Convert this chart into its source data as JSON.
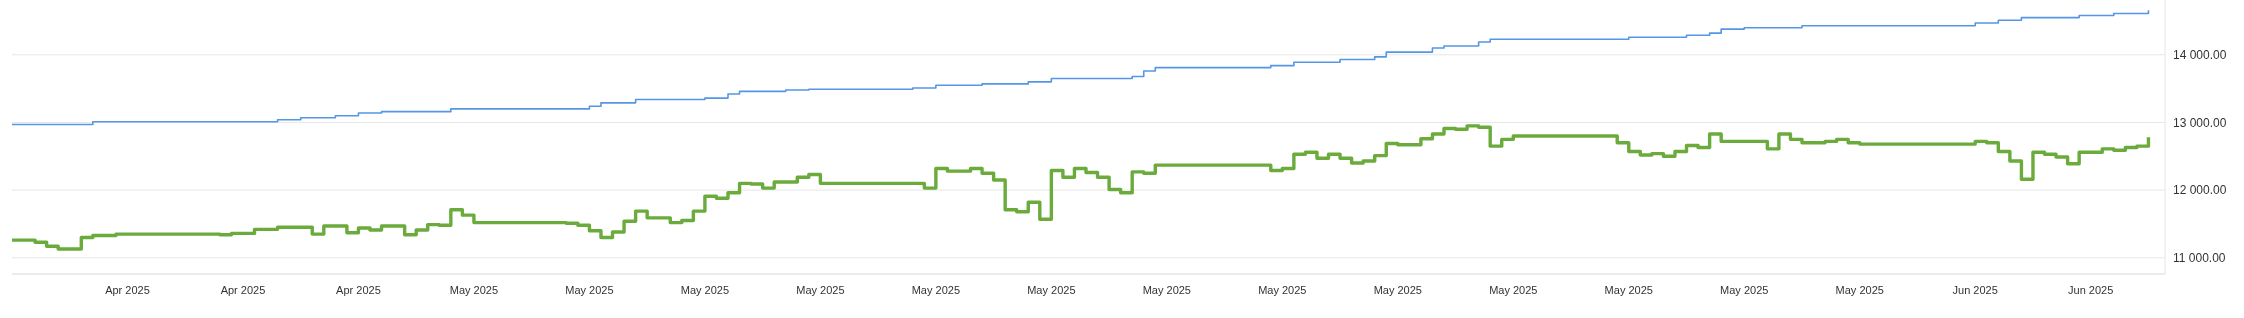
{
  "chart_data": {
    "type": "step",
    "categories": [
      null,
      null,
      null,
      null,
      null,
      null,
      null,
      null,
      null,
      null,
      "Apr 2025",
      null,
      null,
      null,
      null,
      null,
      null,
      null,
      null,
      null,
      "Apr 2025",
      null,
      null,
      null,
      null,
      null,
      null,
      null,
      null,
      null,
      "Apr 2025",
      null,
      null,
      null,
      null,
      null,
      null,
      null,
      null,
      null,
      "May 2025",
      null,
      null,
      null,
      null,
      null,
      null,
      null,
      null,
      null,
      "May 2025",
      null,
      null,
      null,
      null,
      null,
      null,
      null,
      null,
      null,
      "May 2025",
      null,
      null,
      null,
      null,
      null,
      null,
      null,
      null,
      null,
      "May 2025",
      null,
      null,
      null,
      null,
      null,
      null,
      null,
      null,
      null,
      "May 2025",
      null,
      null,
      null,
      null,
      null,
      null,
      null,
      null,
      null,
      "May 2025",
      null,
      null,
      null,
      null,
      null,
      null,
      null,
      null,
      null,
      "May 2025",
      null,
      null,
      null,
      null,
      null,
      null,
      null,
      null,
      null,
      "May 2025",
      null,
      null,
      null,
      null,
      null,
      null,
      null,
      null,
      null,
      "May 2025",
      null,
      null,
      null,
      null,
      null,
      null,
      null,
      null,
      null,
      "May 2025",
      null,
      null,
      null,
      null,
      null,
      null,
      null,
      null,
      null,
      "May 2025",
      null,
      null,
      null,
      null,
      null,
      null,
      null,
      null,
      null,
      "May 2025",
      null,
      null,
      null,
      null,
      null,
      null,
      null,
      null,
      null,
      "May 2025",
      null,
      null,
      null,
      null,
      null,
      null,
      null,
      null,
      null,
      "Jun 2025",
      null,
      null,
      null,
      null,
      null,
      null,
      null,
      null,
      null,
      "Jun 2025",
      null,
      null,
      null,
      null,
      null,
      null
    ],
    "ylim": [
      10760,
      14810
    ],
    "yticks": [
      {
        "value": 11000,
        "label": "11 000.00"
      },
      {
        "value": 12000,
        "label": "12 000.00"
      },
      {
        "value": 13000,
        "label": "13 000.00"
      },
      {
        "value": 14000,
        "label": "14 000.00"
      }
    ],
    "grid": "y",
    "marker": "none",
    "line_style": "solid",
    "series": [
      {
        "color": "#5596e6",
        "values": [
          12970,
          12970,
          12970,
          12970,
          12970,
          12970,
          12970,
          13010,
          13010,
          13010,
          13010,
          13010,
          13010,
          13010,
          13010,
          13010,
          13010,
          13010,
          13010,
          13010,
          13010,
          13010,
          13010,
          13040,
          13040,
          13070,
          13070,
          13070,
          13100,
          13100,
          13140,
          13140,
          13160,
          13160,
          13160,
          13160,
          13160,
          13160,
          13200,
          13200,
          13200,
          13200,
          13200,
          13200,
          13200,
          13200,
          13200,
          13200,
          13200,
          13200,
          13240,
          13290,
          13290,
          13290,
          13340,
          13340,
          13340,
          13340,
          13340,
          13340,
          13360,
          13360,
          13420,
          13460,
          13460,
          13460,
          13460,
          13480,
          13480,
          13490,
          13490,
          13490,
          13490,
          13490,
          13490,
          13490,
          13490,
          13490,
          13510,
          13510,
          13550,
          13550,
          13550,
          13550,
          13570,
          13570,
          13570,
          13570,
          13600,
          13600,
          13650,
          13650,
          13650,
          13650,
          13650,
          13650,
          13650,
          13680,
          13760,
          13810,
          13810,
          13810,
          13810,
          13810,
          13810,
          13810,
          13810,
          13810,
          13810,
          13840,
          13840,
          13890,
          13890,
          13890,
          13890,
          13930,
          13930,
          13930,
          13970,
          14040,
          14040,
          14040,
          14040,
          14100,
          14130,
          14130,
          14130,
          14190,
          14230,
          14230,
          14230,
          14230,
          14230,
          14230,
          14230,
          14230,
          14230,
          14230,
          14230,
          14230,
          14260,
          14260,
          14260,
          14260,
          14260,
          14290,
          14290,
          14320,
          14380,
          14380,
          14400,
          14400,
          14400,
          14400,
          14400,
          14430,
          14430,
          14430,
          14430,
          14430,
          14430,
          14430,
          14430,
          14430,
          14430,
          14430,
          14430,
          14430,
          14430,
          14430,
          14470,
          14470,
          14510,
          14510,
          14550,
          14550,
          14550,
          14550,
          14550,
          14580,
          14580,
          14580,
          14610,
          14610,
          14610,
          14660,
          null
        ]
      },
      {
        "color": "#6aab3c",
        "values": [
          11260,
          11260,
          11230,
          11170,
          11130,
          11130,
          11300,
          11330,
          11330,
          11350,
          11350,
          11350,
          11350,
          11350,
          11350,
          11350,
          11350,
          11350,
          11340,
          11360,
          11360,
          11420,
          11420,
          11450,
          11450,
          11450,
          11350,
          11470,
          11470,
          11370,
          11440,
          11410,
          11470,
          11470,
          11340,
          11410,
          11490,
          11480,
          11710,
          11630,
          11520,
          11520,
          11520,
          11520,
          11520,
          11520,
          11520,
          11520,
          11510,
          11480,
          11400,
          11300,
          11380,
          11540,
          11690,
          11590,
          11590,
          11520,
          11550,
          11690,
          11910,
          11880,
          11960,
          12100,
          12090,
          12030,
          12120,
          12120,
          12190,
          12230,
          12100,
          12100,
          12100,
          12100,
          12100,
          12100,
          12100,
          12100,
          12100,
          12030,
          12320,
          12280,
          12280,
          12320,
          12250,
          12150,
          11710,
          11680,
          11820,
          11570,
          12290,
          12190,
          12320,
          12260,
          12190,
          12010,
          11960,
          12270,
          12250,
          12370,
          12370,
          12370,
          12370,
          12370,
          12370,
          12370,
          12370,
          12370,
          12370,
          12290,
          12320,
          12530,
          12560,
          12470,
          12530,
          12470,
          12400,
          12430,
          12510,
          12690,
          12670,
          12670,
          12760,
          12830,
          12910,
          12900,
          12950,
          12930,
          12650,
          12750,
          12800,
          12800,
          12800,
          12800,
          12800,
          12800,
          12800,
          12800,
          12800,
          12700,
          12570,
          12520,
          12540,
          12500,
          12570,
          12660,
          12630,
          12830,
          12720,
          12720,
          12720,
          12720,
          12610,
          12830,
          12750,
          12700,
          12700,
          12720,
          12750,
          12700,
          12680,
          12680,
          12680,
          12680,
          12680,
          12680,
          12680,
          12680,
          12680,
          12680,
          12720,
          12700,
          12570,
          12430,
          12160,
          12560,
          12530,
          12490,
          12390,
          12560,
          12560,
          12610,
          12590,
          12630,
          12650,
          12780,
          null
        ]
      }
    ]
  }
}
